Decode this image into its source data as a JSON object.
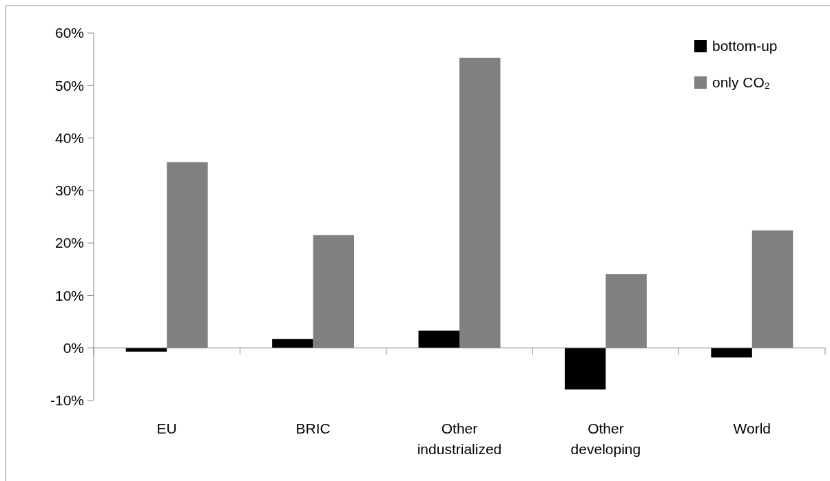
{
  "chart_data": {
    "type": "bar",
    "categories": [
      "EU",
      "BRIC",
      "Other industrialized",
      "Other developing",
      "World"
    ],
    "series": [
      {
        "name": "bottom-up",
        "color": "#000000",
        "values": [
          -0.7,
          1.7,
          3.3,
          -7.9,
          -1.8
        ]
      },
      {
        "name": "only CO₂",
        "color": "#808080",
        "values": [
          35.4,
          21.5,
          55.3,
          14.1,
          22.4
        ]
      }
    ],
    "ylim": [
      -10,
      60
    ],
    "yticks": [
      {
        "value": -10,
        "label": "-10%"
      },
      {
        "value": 0,
        "label": "0%"
      },
      {
        "value": 10,
        "label": "10%"
      },
      {
        "value": 20,
        "label": "20%"
      },
      {
        "value": 30,
        "label": "30%"
      },
      {
        "value": 40,
        "label": "40%"
      },
      {
        "value": 50,
        "label": "50%"
      },
      {
        "value": 60,
        "label": "60%"
      }
    ],
    "legend": "top right"
  }
}
